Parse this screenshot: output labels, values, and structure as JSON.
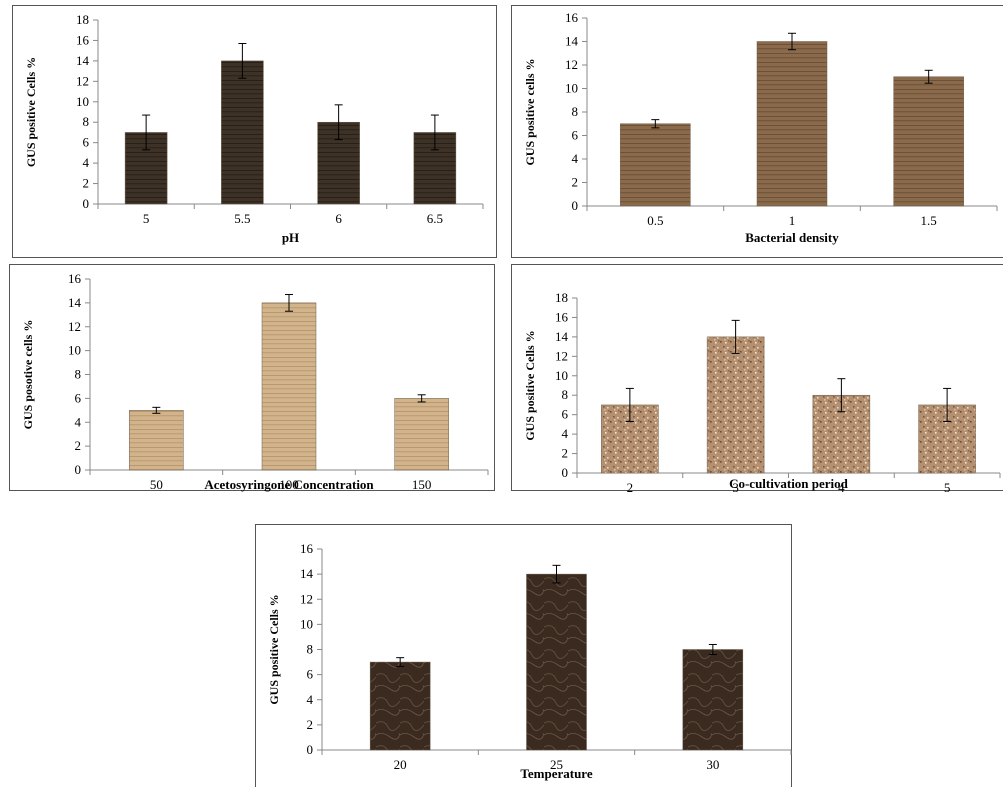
{
  "chart_data": [
    {
      "type": "bar",
      "categories": [
        "5",
        "5.5",
        "6",
        "6.5"
      ],
      "values": [
        7,
        14,
        8,
        7
      ],
      "errors": [
        1.7,
        1.7,
        1.7,
        1.7
      ],
      "xlabel": "pH",
      "ylabel": "GUS positive Cells %",
      "ylim": [
        0,
        18
      ],
      "yticks": [
        "0",
        "2",
        "4",
        "6",
        "8",
        "10",
        "12",
        "14",
        "16",
        "18"
      ],
      "grid": false,
      "bar_color": "#3e3226"
    },
    {
      "type": "bar",
      "categories": [
        "0.5",
        "1",
        "1.5"
      ],
      "values": [
        7,
        14,
        11
      ],
      "errors": [
        0.35,
        0.7,
        0.55
      ],
      "xlabel": "Bacterial density",
      "ylabel": "GUS positive cells %",
      "ylim": [
        0,
        16
      ],
      "yticks": [
        "0",
        "2",
        "4",
        "6",
        "8",
        "10",
        "12",
        "14",
        "16"
      ],
      "grid": false,
      "bar_color": "#8a6a4a"
    },
    {
      "type": "bar",
      "categories": [
        "50",
        "100",
        "150"
      ],
      "values": [
        5,
        14,
        6
      ],
      "errors": [
        0.25,
        0.7,
        0.3
      ],
      "xlabel": "Acetosyringone Concentration",
      "ylabel": "GUS posotive cells %",
      "ylim": [
        0,
        16
      ],
      "yticks": [
        "0",
        "2",
        "4",
        "6",
        "8",
        "10",
        "12",
        "14",
        "16"
      ],
      "grid": false,
      "bar_color": "#d2b48c"
    },
    {
      "type": "bar",
      "categories": [
        "2",
        "3",
        "4",
        "5"
      ],
      "values": [
        7,
        14,
        8,
        7
      ],
      "errors": [
        1.7,
        1.7,
        1.7,
        1.7
      ],
      "xlabel": "Co-cultivation period",
      "ylabel": "GUS positive Cells %",
      "ylim": [
        0,
        18
      ],
      "yticks": [
        "0",
        "2",
        "4",
        "6",
        "8",
        "10",
        "12",
        "14",
        "16",
        "18"
      ],
      "grid": false,
      "bar_color": "#b49070"
    },
    {
      "type": "bar",
      "categories": [
        "20",
        "25",
        "30"
      ],
      "values": [
        7,
        14,
        8
      ],
      "errors": [
        0.35,
        0.7,
        0.4
      ],
      "xlabel": "Temperature",
      "ylabel": "GUS positive Cells %",
      "ylim": [
        0,
        16
      ],
      "yticks": [
        "0",
        "2",
        "4",
        "6",
        "8",
        "10",
        "12",
        "14",
        "16"
      ],
      "grid": false,
      "bar_color": "#3a2a20"
    }
  ]
}
